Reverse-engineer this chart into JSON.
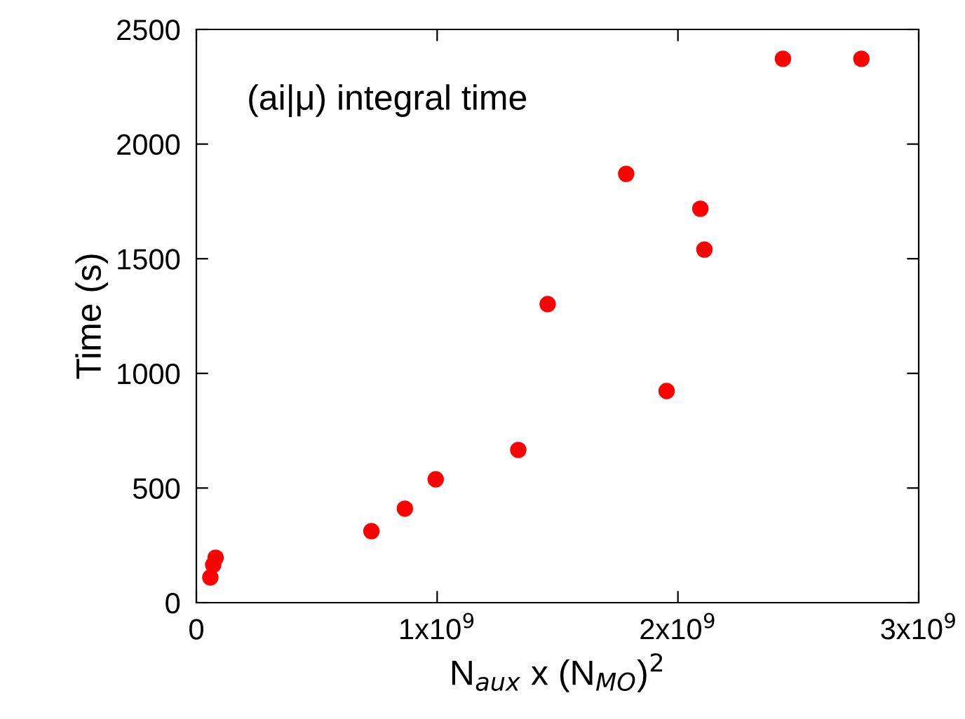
{
  "chart_data": {
    "type": "scatter",
    "xlabel": "N$_{aux}$ x (N$_{MO}$)$^{2}$",
    "ylabel": "Time (s)",
    "annotations": [
      "(ai|μ) integral time"
    ],
    "x": [
      58000000.0,
      70000000.0,
      80000000.0,
      727000000.0,
      866000000.0,
      994000000.0,
      1337000000.0,
      1459000000.0,
      1785000000.0,
      1953000000.0,
      2093000000.0,
      2110000000.0,
      2436000000.0,
      2762000000.0
    ],
    "series": [
      {
        "color": "#ff0000",
        "values": [
          110,
          165,
          196,
          312,
          410,
          538,
          666,
          1302,
          1870,
          923,
          1718,
          1540,
          2372,
          2372
        ]
      }
    ],
    "xlim": [
      0,
      3000000000.0
    ],
    "xticks": [
      0,
      {
        "value": 1000000000.0,
        "label": "1x10$^{9}$"
      },
      {
        "value": 2000000000.0,
        "label": "2x10$^{9}$"
      },
      {
        "value": 3000000000.0,
        "label": "3x10$^{9}$"
      }
    ],
    "ylim": [
      0,
      2500
    ],
    "yticks": [
      0,
      500,
      1000,
      1500,
      2000,
      2500
    ],
    "marker": "circle",
    "grid": false,
    "legend": false
  }
}
